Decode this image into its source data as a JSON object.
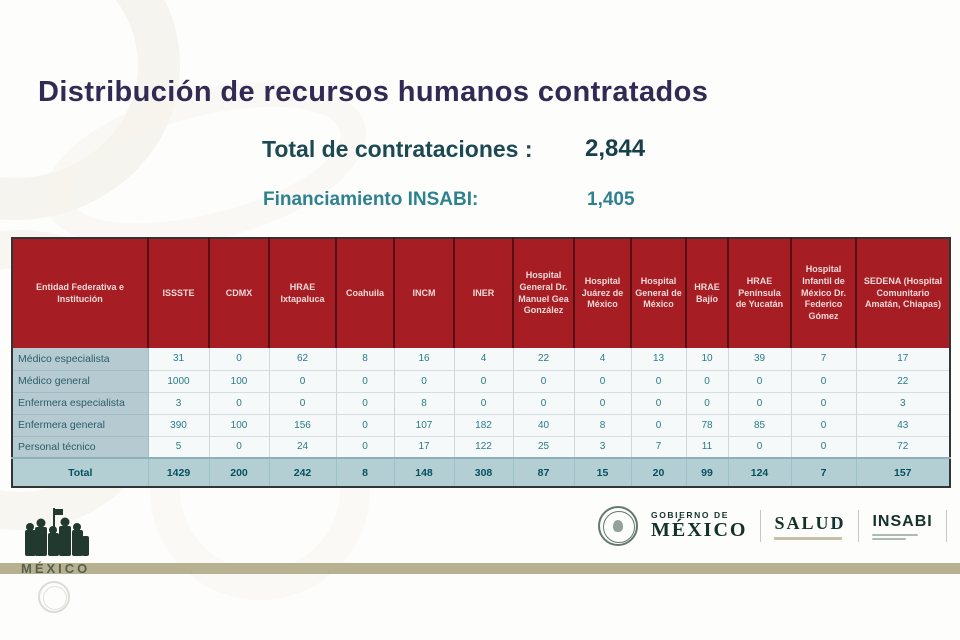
{
  "slide": {
    "title": "Distribución de recursos humanos contratados",
    "total_label": "Total de contrataciones :",
    "total_value": "2,844",
    "financing_label": "Financiamiento INSABI:",
    "financing_value": "1,405"
  },
  "table": {
    "corner_header": "Entidad Federativa e Institución",
    "columns": [
      "ISSSTE",
      "CDMX",
      "HRAE Ixtapaluca",
      "Coahuila",
      "INCM",
      "INER",
      "Hospital General Dr. Manuel Gea González",
      "Hospital Juárez de México",
      "Hospital General de México",
      "HRAE Bajío",
      "HRAE Península de Yucatán",
      "Hospital Infantil de México Dr. Federico Gómez",
      "SEDENA (Hospital Comunitario Amatán, Chiapas)"
    ],
    "rows": [
      {
        "label": "Médico especialista",
        "values": [
          "31",
          "0",
          "62",
          "8",
          "16",
          "4",
          "22",
          "4",
          "13",
          "10",
          "39",
          "7",
          "17"
        ]
      },
      {
        "label": "Médico general",
        "values": [
          "1000",
          "100",
          "0",
          "0",
          "0",
          "0",
          "0",
          "0",
          "0",
          "0",
          "0",
          "0",
          "22"
        ]
      },
      {
        "label": "Enfermera especialista",
        "values": [
          "3",
          "0",
          "0",
          "0",
          "8",
          "0",
          "0",
          "0",
          "0",
          "0",
          "0",
          "0",
          "3"
        ]
      },
      {
        "label": "Enfermera general",
        "values": [
          "390",
          "100",
          "156",
          "0",
          "107",
          "182",
          "40",
          "8",
          "0",
          "78",
          "85",
          "0",
          "43"
        ]
      },
      {
        "label": "Personal técnico",
        "values": [
          "5",
          "0",
          "24",
          "0",
          "17",
          "122",
          "25",
          "3",
          "7",
          "11",
          "0",
          "0",
          "72"
        ]
      }
    ],
    "total": {
      "label": "Total",
      "values": [
        "1429",
        "200",
        "242",
        "8",
        "148",
        "308",
        "87",
        "15",
        "20",
        "99",
        "124",
        "7",
        "157"
      ]
    }
  },
  "footer": {
    "gobierno_line1": "GOBIERNO DE",
    "gobierno_line2": "MÉXICO",
    "salud_label": "SALUD",
    "insabi_label": "INSABI",
    "mexico_stamp": "MÉXICO"
  },
  "colors": {
    "title": "#322a55",
    "subtitle_dark_teal": "#1c4953",
    "subtitle_teal": "#2e8290",
    "header_red": "#a61d24",
    "label_column_bg": "#b6cbd1",
    "total_row_bg": "#b4cfd4",
    "cell_text_teal": "#2a7b89",
    "footer_band": "#b6b190",
    "logo_green": "#14322b"
  }
}
